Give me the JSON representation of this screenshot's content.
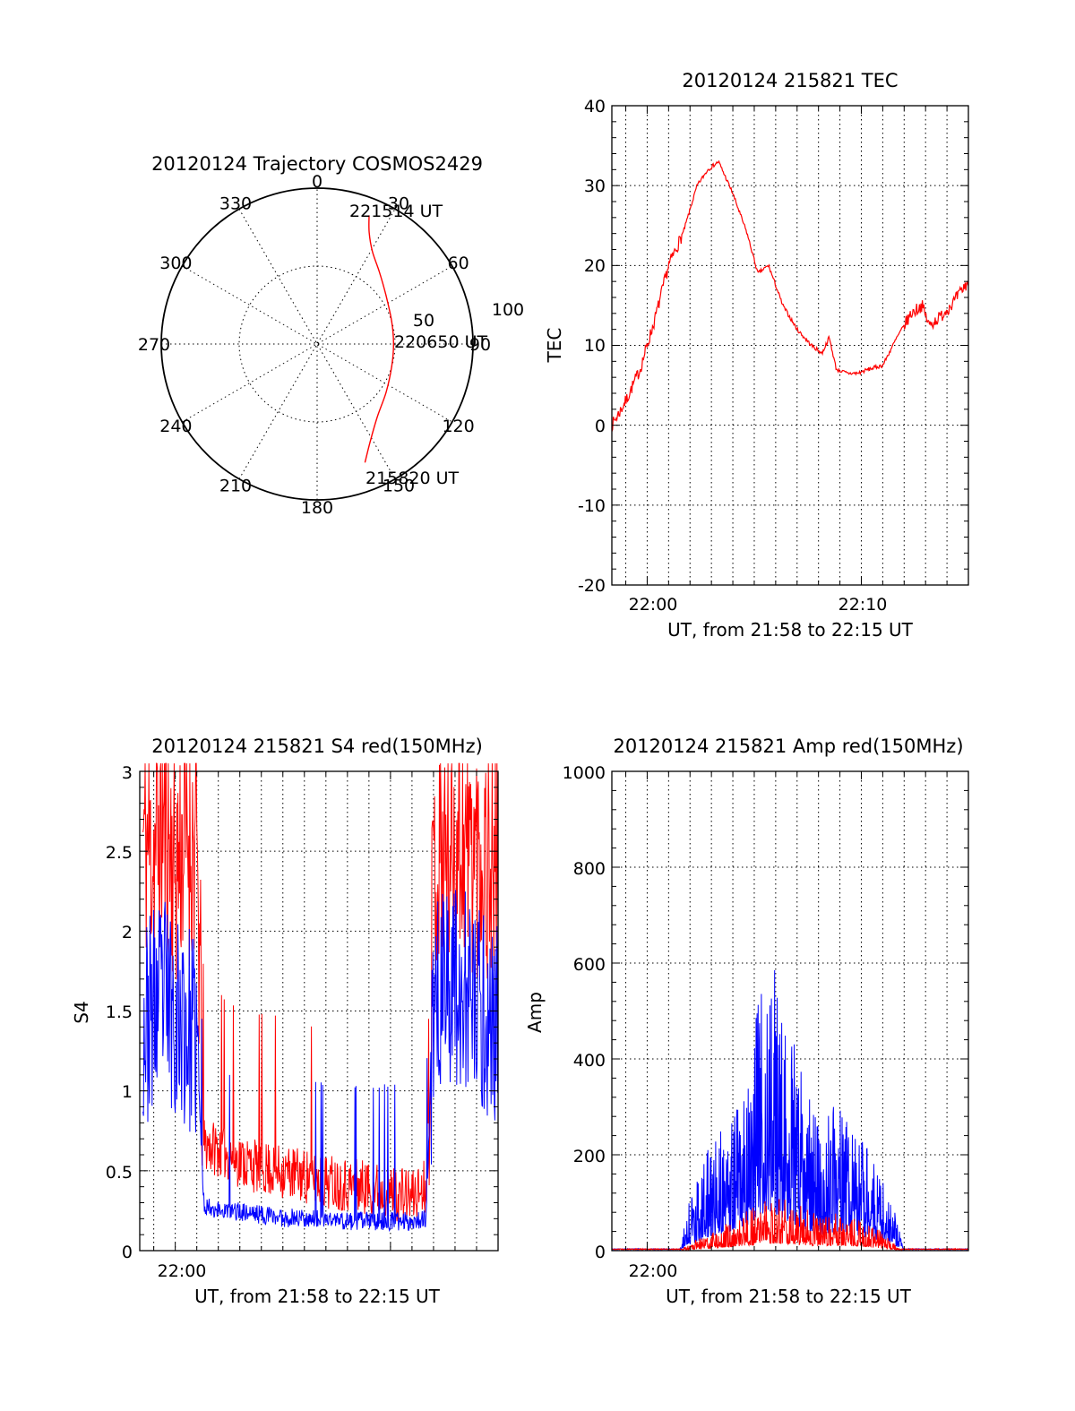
{
  "colors": {
    "red_trace": "#ff0000",
    "blue_trace": "#0000ff",
    "axes": "#000000",
    "background": "#ffffff"
  },
  "polar": {
    "title": "20120124 Trajectory COSMOS2429",
    "azimuth_labels": [
      "0",
      "30",
      "60",
      "90",
      "120",
      "150",
      "180",
      "210",
      "240",
      "270",
      "300",
      "330"
    ],
    "ring_labels": [
      "50",
      "100"
    ],
    "start_label": "215820 UT",
    "mid_label": "220650 UT",
    "end_label": "221514 UT"
  },
  "tec": {
    "title": "20120124 215821 TEC",
    "ylabel": "TEC",
    "xlabel": "UT, from 21:58 to 22:15 UT",
    "xticks": [
      "22:00",
      "22:10"
    ],
    "yticks": [
      "-20",
      "-10",
      "0",
      "10",
      "20",
      "30",
      "40"
    ]
  },
  "s4": {
    "title": "20120124 215821 S4 red(150MHz)",
    "ylabel": "S4",
    "xlabel": "UT, from 21:58 to 22:15 UT",
    "xticks": [
      "22:00"
    ],
    "yticks": [
      "0",
      "0.5",
      "1",
      "1.5",
      "2",
      "2.5",
      "3"
    ]
  },
  "amp": {
    "title": "20120124 215821 Amp red(150MHz)",
    "ylabel": "Amp",
    "xlabel": "UT, from 21:58 to 22:15 UT",
    "xticks": [
      "22:00"
    ],
    "yticks": [
      "0",
      "200",
      "400",
      "600",
      "800",
      "1000"
    ]
  },
  "chart_data": [
    {
      "type": "scatter",
      "panel": "polar",
      "title": "20120124 Trajectory COSMOS2429",
      "angular_axis": "azimuth (deg, clockwise from top)",
      "radial_axis": "zenith distance",
      "rlim": [
        0,
        100
      ],
      "grid": true,
      "series": [
        {
          "color": "#ff0000",
          "points": [
            [
              158,
              82
            ],
            [
              152,
              72
            ],
            [
              141,
              61
            ],
            [
              125,
              54
            ],
            [
              107,
              50
            ],
            [
              90,
              49
            ],
            [
              73,
              50
            ],
            [
              55,
              54
            ],
            [
              41,
              61
            ],
            [
              31,
              69
            ],
            [
              25,
              79
            ],
            [
              22,
              89
            ]
          ]
        }
      ],
      "annotations": [
        "215820 UT",
        "220650 UT",
        "221514 UT"
      ]
    },
    {
      "type": "line",
      "panel": "tec",
      "title": "20120124 215821 TEC",
      "xlabel": "UT, from 21:58 to 22:15 UT",
      "ylabel": "TEC",
      "xlim": [
        "21:58:21",
        "22:15:00"
      ],
      "ylim": [
        -20,
        40
      ],
      "grid": true,
      "series": [
        {
          "color": "#ff0000",
          "x": [
            "21:58:21",
            "21:59:00",
            "21:59:40",
            "22:00:20",
            "22:01:00",
            "22:01:40",
            "22:02:20",
            "22:02:50",
            "22:03:20",
            "22:04:00",
            "22:04:40",
            "22:05:10",
            "22:05:40",
            "22:06:20",
            "22:07:00",
            "22:07:40",
            "22:08:10",
            "22:08:30",
            "22:08:50",
            "22:09:20",
            "22:09:50",
            "22:10:20",
            "22:11:00",
            "22:11:40",
            "22:12:20",
            "22:12:50",
            "22:13:10",
            "22:13:40",
            "22:14:20",
            "22:15:00"
          ],
          "y": [
            0,
            3,
            7,
            13,
            20,
            24,
            30,
            32,
            33,
            29,
            24,
            19,
            20,
            15,
            12,
            10,
            9,
            11,
            7,
            6.5,
            6.5,
            7,
            7.5,
            11,
            14,
            15,
            12.5,
            13.5,
            15.5,
            18
          ]
        }
      ]
    },
    {
      "type": "line",
      "panel": "s4",
      "title": "20120124 215821 S4 red(150MHz)",
      "xlabel": "UT, from 21:58 to 22:15 UT",
      "ylabel": "S4",
      "xlim": [
        "21:58:21",
        "22:15:00"
      ],
      "ylim": [
        0,
        3
      ],
      "grid": true,
      "series": [
        {
          "name": "red",
          "color": "#ff0000",
          "x": [
            "21:58:30",
            "21:59:00",
            "21:59:30",
            "22:00:00",
            "22:00:30",
            "22:01:00",
            "22:01:20",
            "22:02:00",
            "22:03:00",
            "22:04:00",
            "22:05:00",
            "22:06:00",
            "22:07:00",
            "22:08:00",
            "22:09:00",
            "22:10:00",
            "22:11:00",
            "22:11:40",
            "22:12:00",
            "22:13:00",
            "22:14:00",
            "22:15:00"
          ],
          "y": [
            2.6,
            2.5,
            2.7,
            2.4,
            2.6,
            2.5,
            0.65,
            0.62,
            0.55,
            0.5,
            0.48,
            0.45,
            0.42,
            0.4,
            0.38,
            0.35,
            0.32,
            0.4,
            2.4,
            2.6,
            2.5,
            2.4
          ]
        },
        {
          "name": "blue",
          "color": "#0000ff",
          "x": [
            "21:58:30",
            "21:59:00",
            "21:59:30",
            "22:00:00",
            "22:00:30",
            "22:01:00",
            "22:01:20",
            "22:02:00",
            "22:03:00",
            "22:04:00",
            "22:05:00",
            "22:06:00",
            "22:07:00",
            "22:08:00",
            "22:09:00",
            "22:10:00",
            "22:11:00",
            "22:11:40",
            "22:12:00",
            "22:13:00",
            "22:14:00",
            "22:15:00"
          ],
          "y": [
            1.4,
            1.5,
            1.6,
            1.5,
            1.4,
            1.3,
            0.28,
            0.25,
            0.24,
            0.22,
            0.2,
            0.2,
            0.19,
            0.18,
            0.18,
            0.18,
            0.18,
            0.2,
            1.6,
            1.7,
            1.5,
            1.4
          ]
        }
      ]
    },
    {
      "type": "line",
      "panel": "amp",
      "title": "20120124 215821 Amp red(150MHz)",
      "xlabel": "UT, from 21:58 to 22:15 UT",
      "ylabel": "Amp",
      "xlim": [
        "21:58:21",
        "22:15:00"
      ],
      "ylim": [
        0,
        1000
      ],
      "grid": true,
      "series": [
        {
          "name": "blue",
          "color": "#0000ff",
          "x": [
            "21:58:21",
            "22:01:30",
            "22:02:00",
            "22:03:00",
            "22:04:00",
            "22:05:00",
            "22:05:40",
            "22:06:20",
            "22:07:00",
            "22:08:00",
            "22:09:00",
            "22:10:00",
            "22:11:00",
            "22:11:30",
            "22:12:00",
            "22:15:00"
          ],
          "y": [
            0,
            0,
            70,
            150,
            200,
            300,
            420,
            330,
            260,
            160,
            200,
            150,
            90,
            60,
            0,
            0
          ]
        },
        {
          "name": "red",
          "color": "#ff0000",
          "x": [
            "21:58:21",
            "22:01:30",
            "22:02:00",
            "22:03:00",
            "22:04:00",
            "22:05:00",
            "22:06:00",
            "22:07:00",
            "22:08:00",
            "22:09:00",
            "22:10:00",
            "22:11:00",
            "22:11:30",
            "22:12:00",
            "22:15:00"
          ],
          "y": [
            0,
            0,
            10,
            25,
            40,
            60,
            75,
            65,
            45,
            50,
            40,
            25,
            10,
            0,
            0
          ]
        }
      ]
    }
  ]
}
